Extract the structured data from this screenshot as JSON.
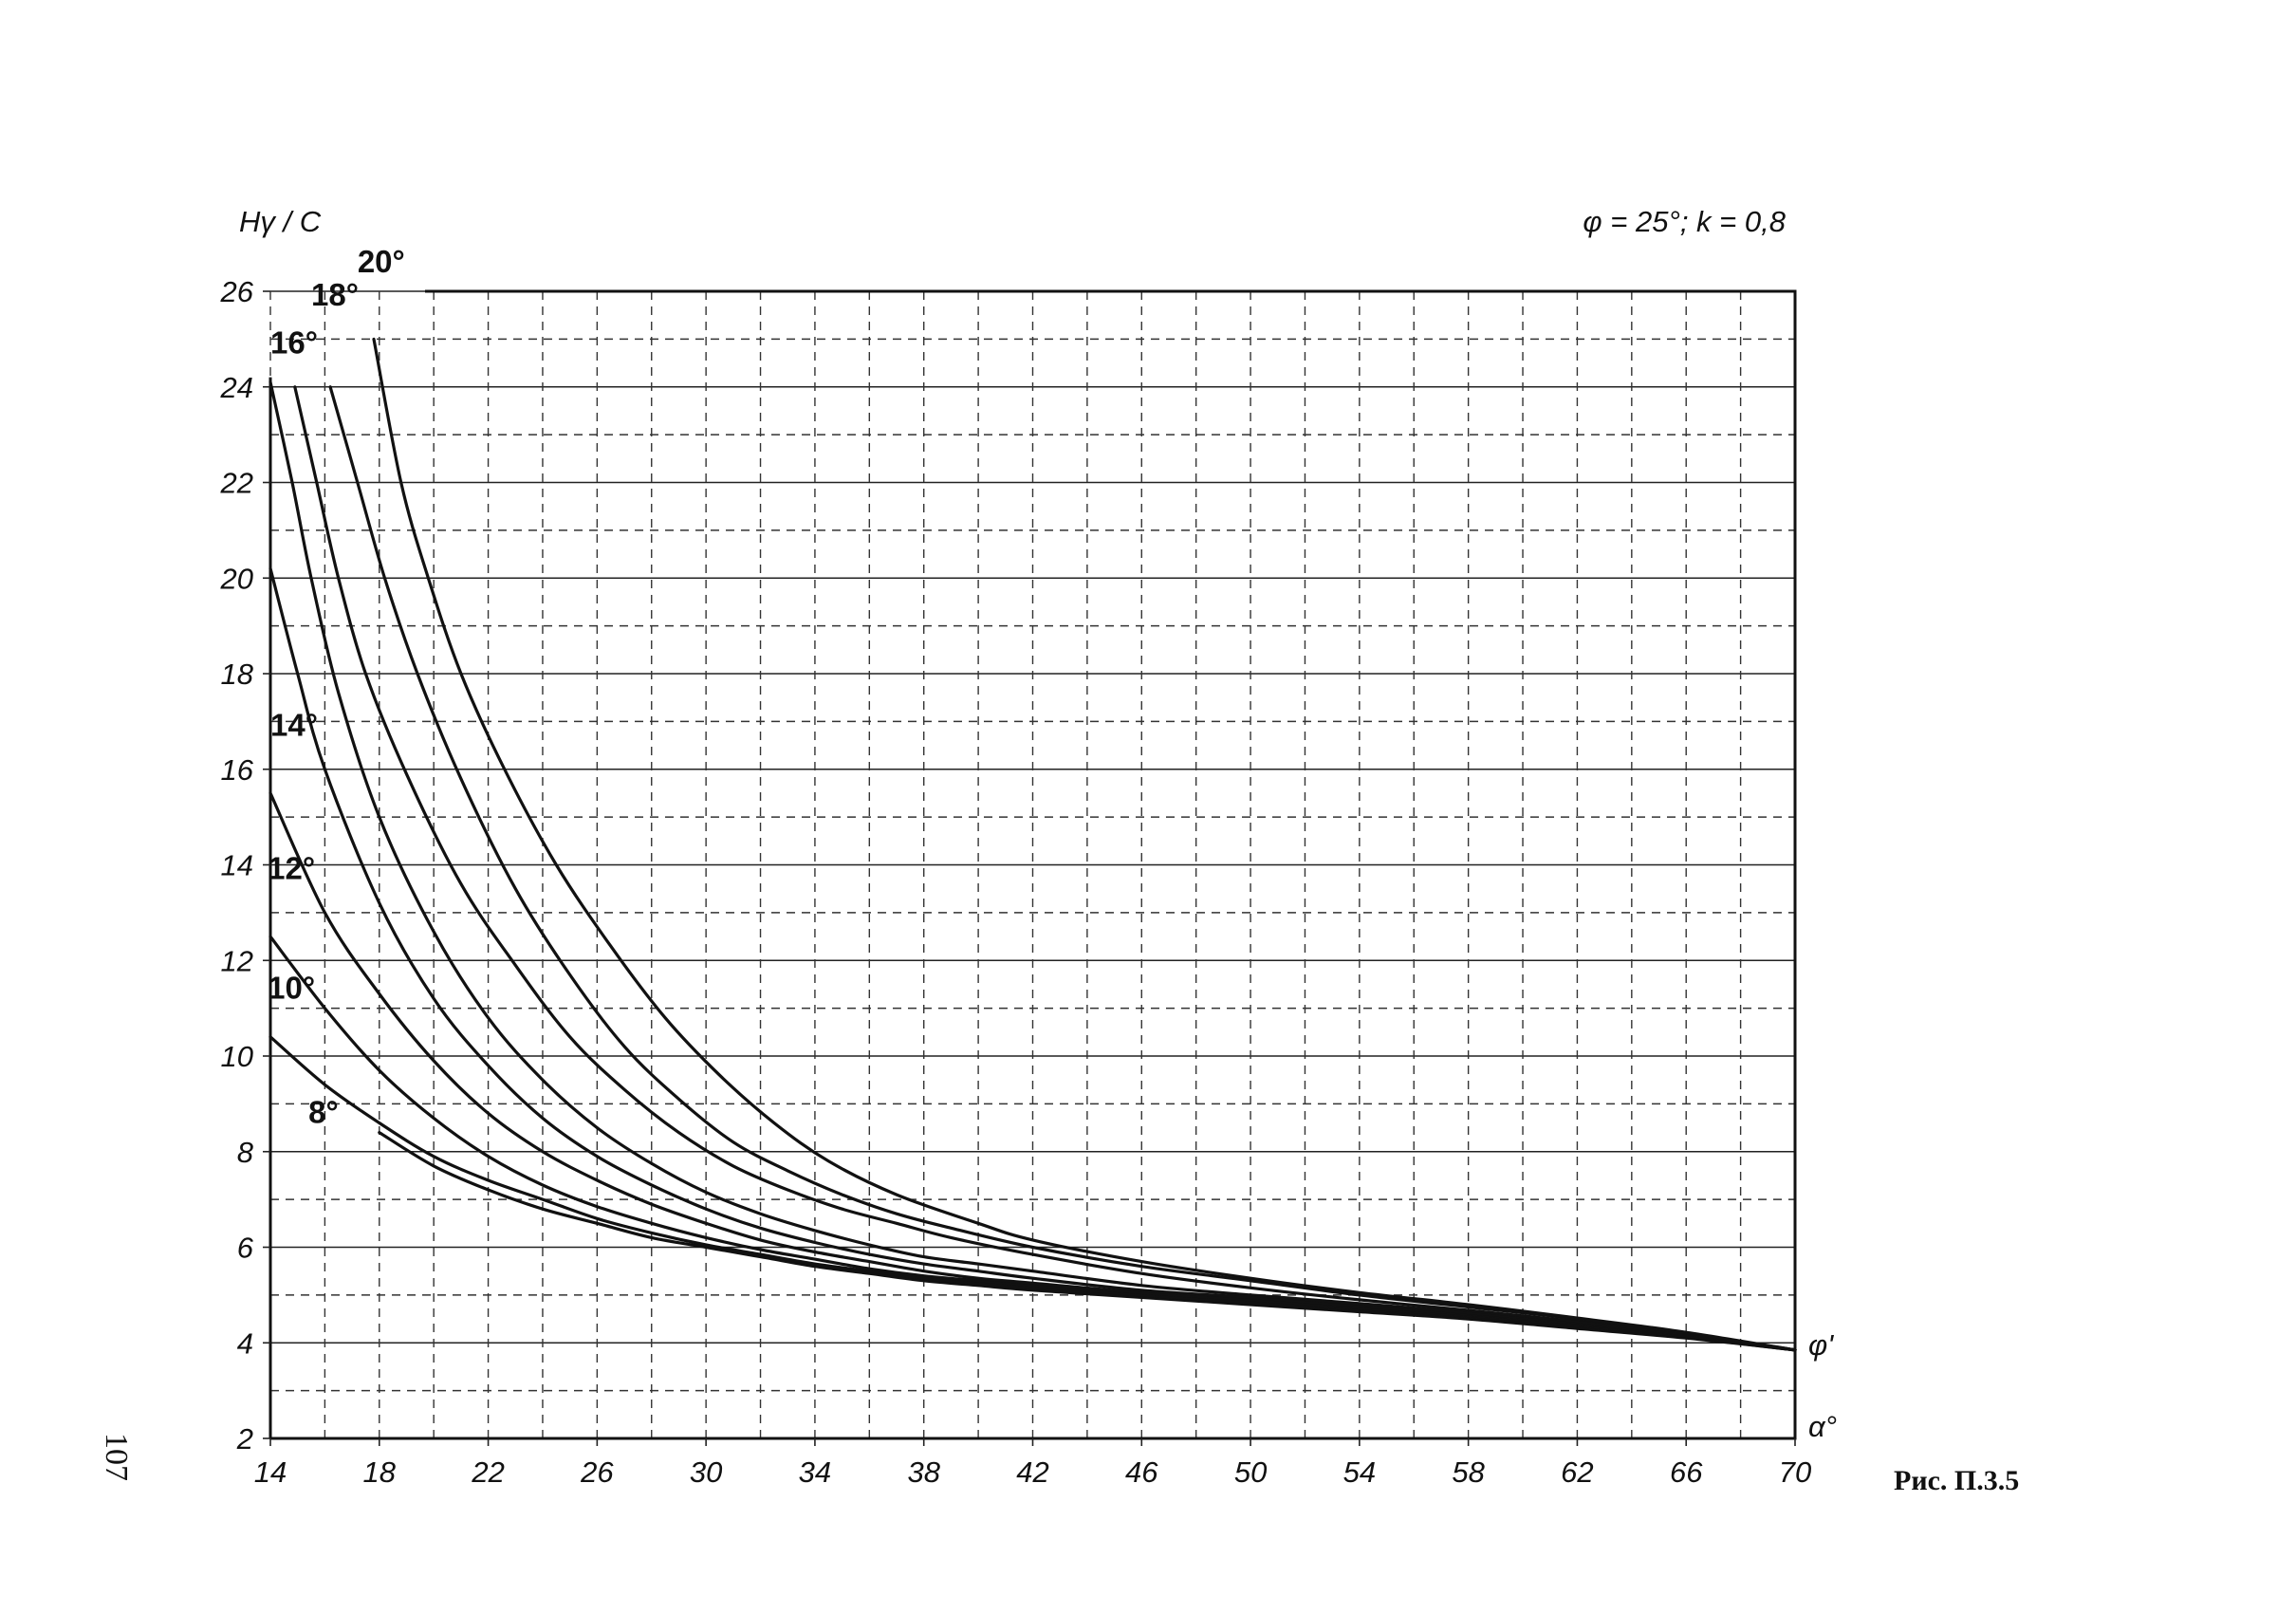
{
  "page_number": "107",
  "caption": "Рис. П.3.5",
  "chart_data": {
    "type": "line",
    "title": "",
    "parameters": "φ = 25°; k = 0,8",
    "ylabel": "Hγ / C",
    "xlabel_end": "α°",
    "series_axis_label": "φ'",
    "xlim": [
      14,
      70
    ],
    "ylim": [
      2,
      26
    ],
    "x_ticks": [
      14,
      18,
      22,
      26,
      30,
      34,
      38,
      42,
      46,
      50,
      54,
      58,
      62,
      66,
      70
    ],
    "y_ticks": [
      2,
      4,
      6,
      8,
      10,
      12,
      14,
      16,
      18,
      20,
      22,
      24,
      26
    ],
    "grid": true,
    "series": [
      {
        "name": "8°",
        "points": [
          [
            18,
            8.4
          ],
          [
            20,
            7.7
          ],
          [
            22,
            7.2
          ],
          [
            24,
            6.8
          ],
          [
            26,
            6.5
          ],
          [
            28,
            6.2
          ],
          [
            30,
            6.0
          ],
          [
            32,
            5.8
          ],
          [
            34,
            5.6
          ],
          [
            36,
            5.45
          ],
          [
            38,
            5.3
          ],
          [
            40,
            5.2
          ],
          [
            42,
            5.1
          ],
          [
            46,
            4.95
          ],
          [
            50,
            4.8
          ],
          [
            54,
            4.65
          ],
          [
            58,
            4.5
          ],
          [
            62,
            4.3
          ],
          [
            66,
            4.1
          ],
          [
            70,
            3.85
          ]
        ]
      },
      {
        "name": "10°",
        "points": [
          [
            14,
            10.4
          ],
          [
            16,
            9.4
          ],
          [
            18,
            8.6
          ],
          [
            20,
            7.9
          ],
          [
            22,
            7.4
          ],
          [
            24,
            7.0
          ],
          [
            26,
            6.6
          ],
          [
            28,
            6.3
          ],
          [
            30,
            6.05
          ],
          [
            32,
            5.85
          ],
          [
            34,
            5.65
          ],
          [
            36,
            5.5
          ],
          [
            38,
            5.35
          ],
          [
            40,
            5.25
          ],
          [
            42,
            5.15
          ],
          [
            46,
            4.97
          ],
          [
            50,
            4.82
          ],
          [
            54,
            4.67
          ],
          [
            58,
            4.52
          ],
          [
            62,
            4.32
          ],
          [
            66,
            4.11
          ],
          [
            70,
            3.85
          ]
        ]
      },
      {
        "name": "12°",
        "points": [
          [
            14,
            12.5
          ],
          [
            16,
            11.0
          ],
          [
            18,
            9.7
          ],
          [
            20,
            8.7
          ],
          [
            22,
            7.9
          ],
          [
            24,
            7.3
          ],
          [
            26,
            6.85
          ],
          [
            28,
            6.5
          ],
          [
            30,
            6.2
          ],
          [
            32,
            5.95
          ],
          [
            34,
            5.75
          ],
          [
            36,
            5.55
          ],
          [
            38,
            5.4
          ],
          [
            40,
            5.3
          ],
          [
            42,
            5.2
          ],
          [
            46,
            5.0
          ],
          [
            50,
            4.85
          ],
          [
            54,
            4.7
          ],
          [
            58,
            4.55
          ],
          [
            62,
            4.35
          ],
          [
            66,
            4.12
          ],
          [
            70,
            3.85
          ]
        ]
      },
      {
        "name": "14°",
        "points": [
          [
            14,
            15.5
          ],
          [
            16,
            13.0
          ],
          [
            18,
            11.3
          ],
          [
            20,
            9.9
          ],
          [
            22,
            8.8
          ],
          [
            24,
            8.0
          ],
          [
            26,
            7.4
          ],
          [
            28,
            6.9
          ],
          [
            30,
            6.5
          ],
          [
            32,
            6.15
          ],
          [
            34,
            5.9
          ],
          [
            36,
            5.7
          ],
          [
            38,
            5.5
          ],
          [
            40,
            5.35
          ],
          [
            42,
            5.25
          ],
          [
            46,
            5.05
          ],
          [
            50,
            4.9
          ],
          [
            54,
            4.73
          ],
          [
            58,
            4.57
          ],
          [
            62,
            4.37
          ],
          [
            66,
            4.13
          ],
          [
            70,
            3.85
          ]
        ]
      },
      {
        "name": "16°",
        "points": [
          [
            14,
            20.2
          ],
          [
            15,
            18.0
          ],
          [
            16,
            16.0
          ],
          [
            18,
            13.2
          ],
          [
            20,
            11.2
          ],
          [
            22,
            9.8
          ],
          [
            24,
            8.7
          ],
          [
            26,
            7.9
          ],
          [
            28,
            7.3
          ],
          [
            30,
            6.8
          ],
          [
            32,
            6.4
          ],
          [
            34,
            6.1
          ],
          [
            36,
            5.85
          ],
          [
            38,
            5.65
          ],
          [
            40,
            5.5
          ],
          [
            42,
            5.35
          ],
          [
            46,
            5.1
          ],
          [
            50,
            4.95
          ],
          [
            54,
            4.77
          ],
          [
            58,
            4.6
          ],
          [
            62,
            4.4
          ],
          [
            66,
            4.15
          ],
          [
            70,
            3.85
          ]
        ]
      },
      {
        "name": "18°",
        "points": [
          [
            14,
            24.1
          ],
          [
            14.8,
            22.0
          ],
          [
            15.5,
            20.0
          ],
          [
            16.5,
            17.6
          ],
          [
            18,
            15.0
          ],
          [
            20,
            12.6
          ],
          [
            22,
            10.8
          ],
          [
            24,
            9.5
          ],
          [
            26,
            8.5
          ],
          [
            28,
            7.75
          ],
          [
            30,
            7.15
          ],
          [
            32,
            6.7
          ],
          [
            34,
            6.35
          ],
          [
            36,
            6.05
          ],
          [
            38,
            5.8
          ],
          [
            40,
            5.65
          ],
          [
            42,
            5.5
          ],
          [
            46,
            5.2
          ],
          [
            50,
            5.0
          ],
          [
            54,
            4.82
          ],
          [
            58,
            4.63
          ],
          [
            62,
            4.42
          ],
          [
            66,
            4.16
          ],
          [
            70,
            3.85
          ]
        ]
      },
      {
        "name": "20°",
        "points": [
          [
            14.9,
            24.0
          ],
          [
            15.7,
            22.0
          ],
          [
            16.5,
            20.0
          ],
          [
            17.5,
            18.0
          ],
          [
            19,
            15.9
          ],
          [
            21,
            13.6
          ],
          [
            23,
            11.9
          ],
          [
            25,
            10.4
          ],
          [
            27,
            9.3
          ],
          [
            29,
            8.4
          ],
          [
            31,
            7.7
          ],
          [
            33,
            7.2
          ],
          [
            35,
            6.8
          ],
          [
            37,
            6.5
          ],
          [
            39,
            6.2
          ],
          [
            42,
            5.85
          ],
          [
            46,
            5.45
          ],
          [
            50,
            5.15
          ],
          [
            54,
            4.9
          ],
          [
            58,
            4.68
          ],
          [
            62,
            4.45
          ],
          [
            66,
            4.18
          ],
          [
            70,
            3.85
          ]
        ]
      },
      {
        "name": "20°",
        "points": [
          [
            16.2,
            24.0
          ],
          [
            17.2,
            22.0
          ],
          [
            18.2,
            20.0
          ],
          [
            19.4,
            18.0
          ],
          [
            21,
            15.8
          ],
          [
            23,
            13.5
          ],
          [
            25,
            11.7
          ],
          [
            27,
            10.2
          ],
          [
            29,
            9.1
          ],
          [
            31,
            8.2
          ],
          [
            33,
            7.6
          ],
          [
            35,
            7.1
          ],
          [
            37,
            6.7
          ],
          [
            39,
            6.4
          ],
          [
            42,
            6.0
          ],
          [
            46,
            5.6
          ],
          [
            50,
            5.3
          ],
          [
            54,
            5.0
          ],
          [
            58,
            4.75
          ],
          [
            62,
            4.5
          ],
          [
            66,
            4.2
          ],
          [
            70,
            3.85
          ]
        ]
      },
      {
        "name": "20°",
        "points": [
          [
            17.8,
            25.0
          ],
          [
            18.8,
            22.0
          ],
          [
            19.8,
            20.0
          ],
          [
            21,
            18.0
          ],
          [
            22.6,
            16.0
          ],
          [
            24.5,
            14.0
          ],
          [
            26.5,
            12.3
          ],
          [
            28.5,
            10.8
          ],
          [
            30.5,
            9.6
          ],
          [
            32.5,
            8.6
          ],
          [
            34.5,
            7.8
          ],
          [
            37,
            7.1
          ],
          [
            40,
            6.5
          ],
          [
            42,
            6.15
          ],
          [
            46,
            5.7
          ],
          [
            50,
            5.35
          ],
          [
            54,
            5.05
          ],
          [
            58,
            4.8
          ],
          [
            62,
            4.52
          ],
          [
            66,
            4.22
          ],
          [
            70,
            3.85
          ]
        ]
      }
    ],
    "curve_labels": [
      {
        "text": "20°",
        "x": 17.2,
        "y": 26.4
      },
      {
        "text": "18°",
        "x": 15.5,
        "y": 25.7
      },
      {
        "text": "16°",
        "x": 14.0,
        "y": 24.7
      },
      {
        "text": "14°",
        "x": 14.0,
        "y": 16.7
      },
      {
        "text": "12°",
        "x": 13.9,
        "y": 13.7
      },
      {
        "text": "10°",
        "x": 13.9,
        "y": 11.2
      },
      {
        "text": "8°",
        "x": 15.4,
        "y": 8.6
      }
    ]
  }
}
